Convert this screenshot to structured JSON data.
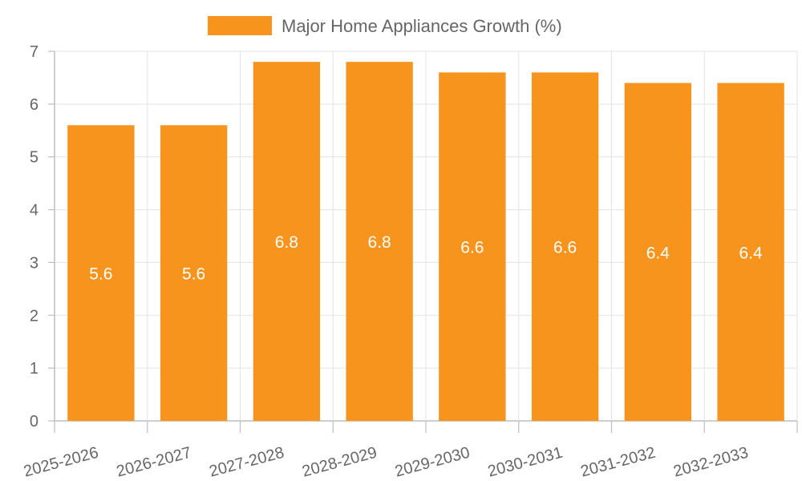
{
  "chart_data": {
    "type": "bar",
    "title": "",
    "xlabel": "",
    "ylabel": "",
    "categories": [
      "2025-2026",
      "2026-2027",
      "2027-2028",
      "2028-2029",
      "2029-2030",
      "2030-2031",
      "2031-2032",
      "2032-2033"
    ],
    "series": [
      {
        "name": "Major Home Appliances Growth (%)",
        "values": [
          5.6,
          5.6,
          6.8,
          6.8,
          6.6,
          6.6,
          6.4,
          6.4
        ],
        "color": "#F7941D"
      }
    ],
    "data_labels": [
      "5.6",
      "5.6",
      "6.8",
      "6.8",
      "6.6",
      "6.6",
      "6.4",
      "6.4"
    ],
    "y_ticks": [
      "0",
      "1",
      "2",
      "3",
      "4",
      "5",
      "6",
      "7"
    ],
    "ylim": [
      0,
      7
    ],
    "grid": true,
    "legend_position": "top-center"
  },
  "colors": {
    "bar": "#F7941D",
    "grid": "#e3e3e3",
    "axis": "#bdbdbd",
    "text": "#666666",
    "label": "#ffffff"
  }
}
